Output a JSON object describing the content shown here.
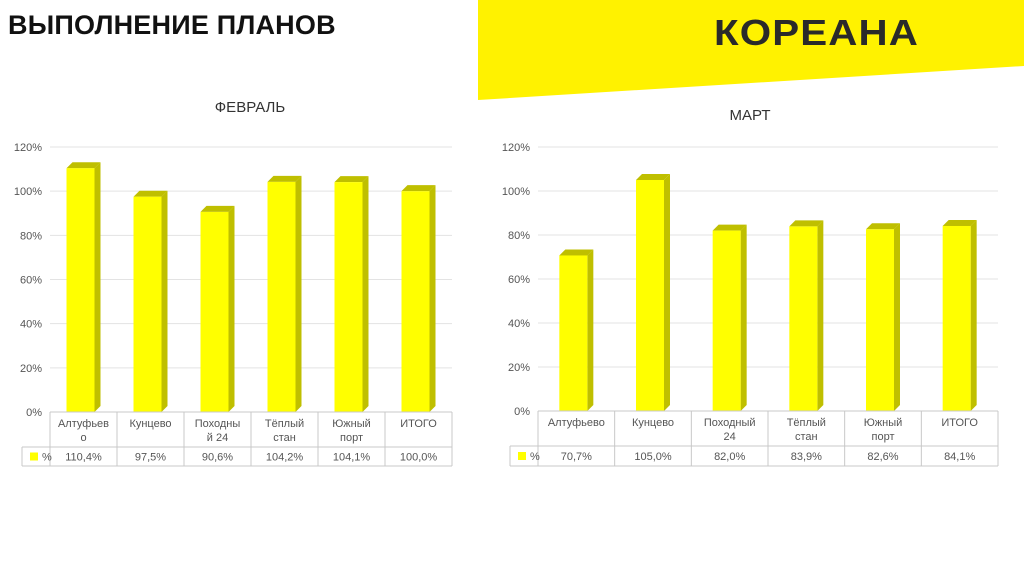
{
  "header": {
    "title": "ВЫПОЛНЕНИЕ ПЛАНОВ",
    "logo_text": "КОРЕАНА",
    "accent_color": "#FFF200"
  },
  "chart_data": [
    {
      "type": "bar",
      "title": "ФЕВРАЛЬ",
      "categories": [
        [
          "Алтуфьев",
          "о"
        ],
        [
          "Кунцево"
        ],
        [
          "Походны",
          "й 24"
        ],
        [
          "Тёплый",
          "стан"
        ],
        [
          "Южный",
          "порт"
        ],
        [
          "ИТОГО"
        ]
      ],
      "series": [
        {
          "name": "%",
          "values": [
            110.4,
            97.5,
            90.6,
            104.2,
            104.1,
            100.0
          ]
        }
      ],
      "value_labels": [
        "110,4%",
        "97,5%",
        "90,6%",
        "104,2%",
        "104,1%",
        "100,0%"
      ],
      "y_ticks": [
        "0%",
        "20%",
        "40%",
        "60%",
        "80%",
        "100%",
        "120%"
      ],
      "ylim": [
        0,
        120
      ],
      "grid": true,
      "bar_color": "#FFFF00",
      "bar_side_color": "#BFBF00",
      "data_table": true
    },
    {
      "type": "bar",
      "title": "МАРТ",
      "categories": [
        [
          "Алтуфьево"
        ],
        [
          "Кунцево"
        ],
        [
          "Походный",
          "24"
        ],
        [
          "Тёплый",
          "стан"
        ],
        [
          "Южный",
          "порт"
        ],
        [
          "ИТОГО"
        ]
      ],
      "series": [
        {
          "name": "%",
          "values": [
            70.7,
            105.0,
            82.0,
            83.9,
            82.6,
            84.1
          ]
        }
      ],
      "value_labels": [
        "70,7%",
        "105,0%",
        "82,0%",
        "83,9%",
        "82,6%",
        "84,1%"
      ],
      "y_ticks": [
        "0%",
        "20%",
        "40%",
        "60%",
        "80%",
        "100%",
        "120%"
      ],
      "ylim": [
        0,
        120
      ],
      "grid": true,
      "bar_color": "#FFFF00",
      "bar_side_color": "#BFBF00",
      "data_table": true
    }
  ]
}
